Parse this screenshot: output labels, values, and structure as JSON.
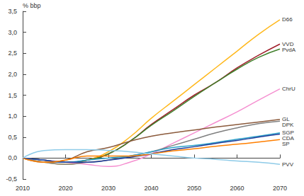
{
  "chart_data": {
    "type": "line",
    "y_label": "% bbp",
    "x": [
      2010,
      2015,
      2020,
      2025,
      2030,
      2035,
      2040,
      2045,
      2050,
      2055,
      2060,
      2065,
      2070
    ],
    "xlim": [
      2010,
      2070
    ],
    "xticks": [
      2010,
      2020,
      2030,
      2040,
      2050,
      2060,
      2070
    ],
    "ylim": [
      -0.5,
      3.5
    ],
    "yticks": [
      {
        "value": -0.5,
        "label": "-0,5"
      },
      {
        "value": 0,
        "label": "0,0"
      },
      {
        "value": 0.5,
        "label": "0,5"
      },
      {
        "value": 1,
        "label": "1,0"
      },
      {
        "value": 1.5,
        "label": "1,5"
      },
      {
        "value": 2,
        "label": "2,0"
      },
      {
        "value": 2.5,
        "label": "2,5"
      },
      {
        "value": 3,
        "label": "3,0"
      },
      {
        "value": 3.5,
        "label": "3,5"
      }
    ],
    "grid": false,
    "series": [
      {
        "name": "D66",
        "color": "#ffb81c",
        "values": [
          0,
          -0.1,
          -0.15,
          -0.05,
          0.15,
          0.5,
          0.95,
          1.35,
          1.75,
          2.15,
          2.55,
          2.95,
          3.3
        ]
      },
      {
        "name": "VVD",
        "color": "#a01e2a",
        "values": [
          0,
          -0.05,
          -0.1,
          -0.05,
          0.1,
          0.4,
          0.8,
          1.15,
          1.5,
          1.8,
          2.15,
          2.45,
          2.72
        ]
      },
      {
        "name": "PvdA",
        "color": "#3f7f2a",
        "values": [
          0,
          -0.05,
          -0.1,
          -0.05,
          0.1,
          0.4,
          0.78,
          1.12,
          1.47,
          1.8,
          2.12,
          2.4,
          2.6
        ]
      },
      {
        "name": "ChrU",
        "color": "#f58fd0",
        "values": [
          0,
          -0.05,
          -0.1,
          -0.15,
          -0.2,
          -0.1,
          0.1,
          0.35,
          0.6,
          0.85,
          1.1,
          1.38,
          1.65
        ]
      },
      {
        "name": "GL",
        "color": "#8b5a3c",
        "values": [
          0,
          -0.1,
          -0.05,
          0.15,
          0.25,
          0.4,
          0.52,
          0.6,
          0.67,
          0.74,
          0.8,
          0.86,
          0.92
        ]
      },
      {
        "name": "DPK",
        "color": "#808080",
        "values": [
          0,
          -0.1,
          -0.15,
          -0.1,
          -0.05,
          0.05,
          0.15,
          0.3,
          0.45,
          0.6,
          0.72,
          0.82,
          0.88
        ]
      },
      {
        "name": "SGP",
        "color": "#2aa0c8",
        "values": [
          0,
          -0.05,
          -0.1,
          -0.05,
          0,
          0.05,
          0.15,
          0.25,
          0.3,
          0.37,
          0.45,
          0.52,
          0.6
        ]
      },
      {
        "name": "CDA",
        "color": "#1f3c9a",
        "values": [
          0,
          -0.05,
          -0.1,
          -0.1,
          -0.05,
          0.02,
          0.1,
          0.2,
          0.27,
          0.35,
          0.42,
          0.5,
          0.57
        ]
      },
      {
        "name": "SP",
        "color": "#ff7f00",
        "values": [
          0,
          -0.1,
          -0.05,
          0.05,
          0.05,
          0.05,
          0.1,
          0.17,
          0.22,
          0.28,
          0.33,
          0.38,
          0.44
        ]
      },
      {
        "name": "PVV",
        "color": "#8ecbe8",
        "values": [
          0,
          0.18,
          0.2,
          0.2,
          0.18,
          0.15,
          0.1,
          0.05,
          0,
          -0.03,
          -0.07,
          -0.1,
          -0.15
        ]
      }
    ]
  }
}
